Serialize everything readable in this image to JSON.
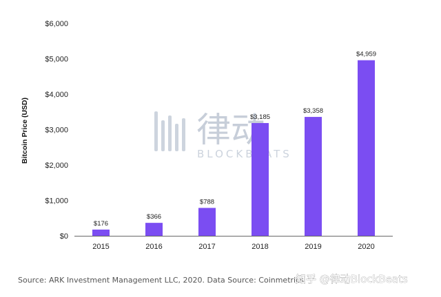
{
  "chart_data": {
    "type": "bar",
    "categories": [
      "2015",
      "2016",
      "2017",
      "2018",
      "2019",
      "2020"
    ],
    "values": [
      176,
      366,
      788,
      3185,
      3358,
      4959
    ],
    "data_labels": [
      "$176",
      "$366",
      "$788",
      "$3,185",
      "$3,358",
      "$4,959"
    ],
    "ylabel": "Bitcoin Price (USD)",
    "ylim": [
      0,
      6000
    ],
    "yticks": [
      0,
      1000,
      2000,
      3000,
      4000,
      5000,
      6000
    ],
    "ytick_labels": [
      "$0",
      "$1,000",
      "$2,000",
      "$3,000",
      "$4,000",
      "$5,000",
      "$6,000"
    ],
    "grid": false,
    "bar_color": "#7b4df2"
  },
  "footer": {
    "source": "Source: ARK Investment Management LLC, 2020. Data Source: Coinmetrics"
  },
  "watermark": {
    "chinese": "律动",
    "latin": "BLOCKBEATS"
  },
  "credit": {
    "text": "知乎 @律动BlockBeats"
  }
}
